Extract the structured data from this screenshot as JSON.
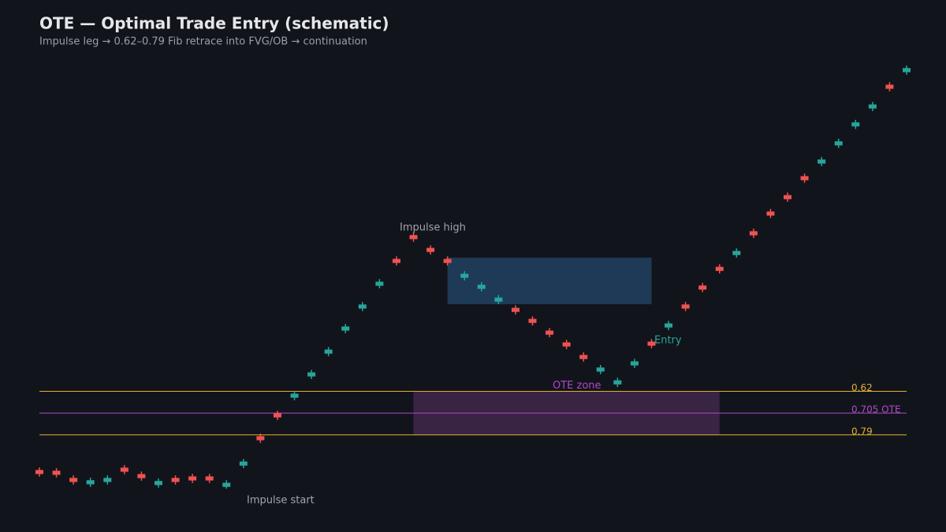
{
  "chart_data": {
    "type": "candlestick",
    "title": "OTE — Optimal Trade Entry (schematic)",
    "subtitle": "Impulse leg → 0.62–0.79 Fib retrace into FVG/OB → continuation",
    "up_color": "#26a69a",
    "down_color": "#ef5350",
    "x": [
      0,
      1,
      2,
      3,
      4,
      5,
      6,
      7,
      8,
      9,
      10,
      11,
      12,
      13,
      14,
      15,
      16,
      17,
      18,
      19,
      20,
      21,
      22,
      23,
      24,
      25,
      26,
      27,
      28,
      29,
      30,
      31,
      32,
      33,
      34,
      35,
      36,
      37,
      38,
      39,
      40,
      41,
      42,
      43,
      44,
      45,
      46,
      47,
      48,
      49,
      50,
      51
    ],
    "open": [
      0.073,
      0.07,
      0.042,
      0.017,
      0.026,
      0.082,
      0.057,
      0.014,
      0.042,
      0.048,
      0.048,
      0.007,
      0.09,
      0.205,
      0.294,
      0.355,
      0.438,
      0.527,
      0.617,
      0.703,
      0.792,
      0.897,
      0.99,
      0.94,
      0.897,
      0.823,
      0.78,
      0.73,
      0.706,
      0.663,
      0.617,
      0.571,
      0.522,
      0.457,
      0.407,
      0.481,
      0.574,
      0.629,
      0.719,
      0.793,
      0.866,
      0.912,
      1.005,
      1.082,
      1.146,
      1.22,
      1.269,
      1.34,
      1.414,
      1.484,
      1.577,
      1.626
    ],
    "high": [
      0.083,
      0.08,
      0.052,
      0.043,
      0.052,
      0.092,
      0.067,
      0.04,
      0.052,
      0.058,
      0.058,
      0.033,
      0.116,
      0.215,
      0.304,
      0.381,
      0.464,
      0.553,
      0.643,
      0.729,
      0.818,
      0.907,
      1.0,
      0.95,
      0.907,
      0.849,
      0.806,
      0.756,
      0.716,
      0.673,
      0.627,
      0.581,
      0.532,
      0.483,
      0.433,
      0.507,
      0.584,
      0.655,
      0.729,
      0.803,
      0.876,
      0.938,
      1.015,
      1.092,
      1.156,
      1.23,
      1.295,
      1.366,
      1.44,
      1.51,
      1.587,
      1.652
    ],
    "low": [
      0.047,
      0.044,
      0.016,
      0.007,
      0.016,
      0.056,
      0.031,
      0.004,
      0.016,
      0.022,
      0.022,
      0,
      0.08,
      0.179,
      0.268,
      0.345,
      0.428,
      0.517,
      0.607,
      0.693,
      0.782,
      0.871,
      0.964,
      0.914,
      0.871,
      0.813,
      0.77,
      0.72,
      0.68,
      0.637,
      0.591,
      0.545,
      0.496,
      0.447,
      0.397,
      0.471,
      0.548,
      0.619,
      0.693,
      0.767,
      0.84,
      0.902,
      0.979,
      1.056,
      1.12,
      1.194,
      1.259,
      1.33,
      1.404,
      1.474,
      1.551,
      1.616
    ],
    "close": [
      0.057,
      0.054,
      0.026,
      0.033,
      0.042,
      0.066,
      0.041,
      0.03,
      0.026,
      0.032,
      0.032,
      0.023,
      0.106,
      0.189,
      0.278,
      0.371,
      0.454,
      0.543,
      0.633,
      0.719,
      0.808,
      0.881,
      0.974,
      0.924,
      0.881,
      0.839,
      0.796,
      0.746,
      0.69,
      0.647,
      0.601,
      0.555,
      0.506,
      0.473,
      0.423,
      0.497,
      0.558,
      0.645,
      0.703,
      0.777,
      0.85,
      0.928,
      0.989,
      1.066,
      1.13,
      1.204,
      1.285,
      1.356,
      1.43,
      1.5,
      1.561,
      1.642
    ],
    "xlim": [
      0,
      51
    ],
    "ylim": [
      -0.0615,
      1.6615
    ],
    "fvg": {
      "x": [
        24,
        36
      ],
      "y": [
        0.72,
        0.902
      ],
      "color": "#1e3a56"
    },
    "ote_zone": {
      "x": [
        22,
        40
      ],
      "label": "OTE zone",
      "color": "#3a2444",
      "label_color": "#b048c8"
    },
    "fib_levels": [
      {
        "retrace": 0.62,
        "label": "0.62",
        "color": "#e0b030"
      },
      {
        "retrace": 0.705,
        "label": "0.705 OTE",
        "color": "#b048c8"
      },
      {
        "retrace": 0.79,
        "label": "0.79",
        "color": "#e0b030"
      }
    ],
    "annotations": [
      {
        "text": "Impulse high",
        "color": "#a0a4ac"
      },
      {
        "text": "Impulse start",
        "color": "#a0a4ac"
      },
      {
        "text": "Entry",
        "color": "#26a69a"
      }
    ]
  }
}
